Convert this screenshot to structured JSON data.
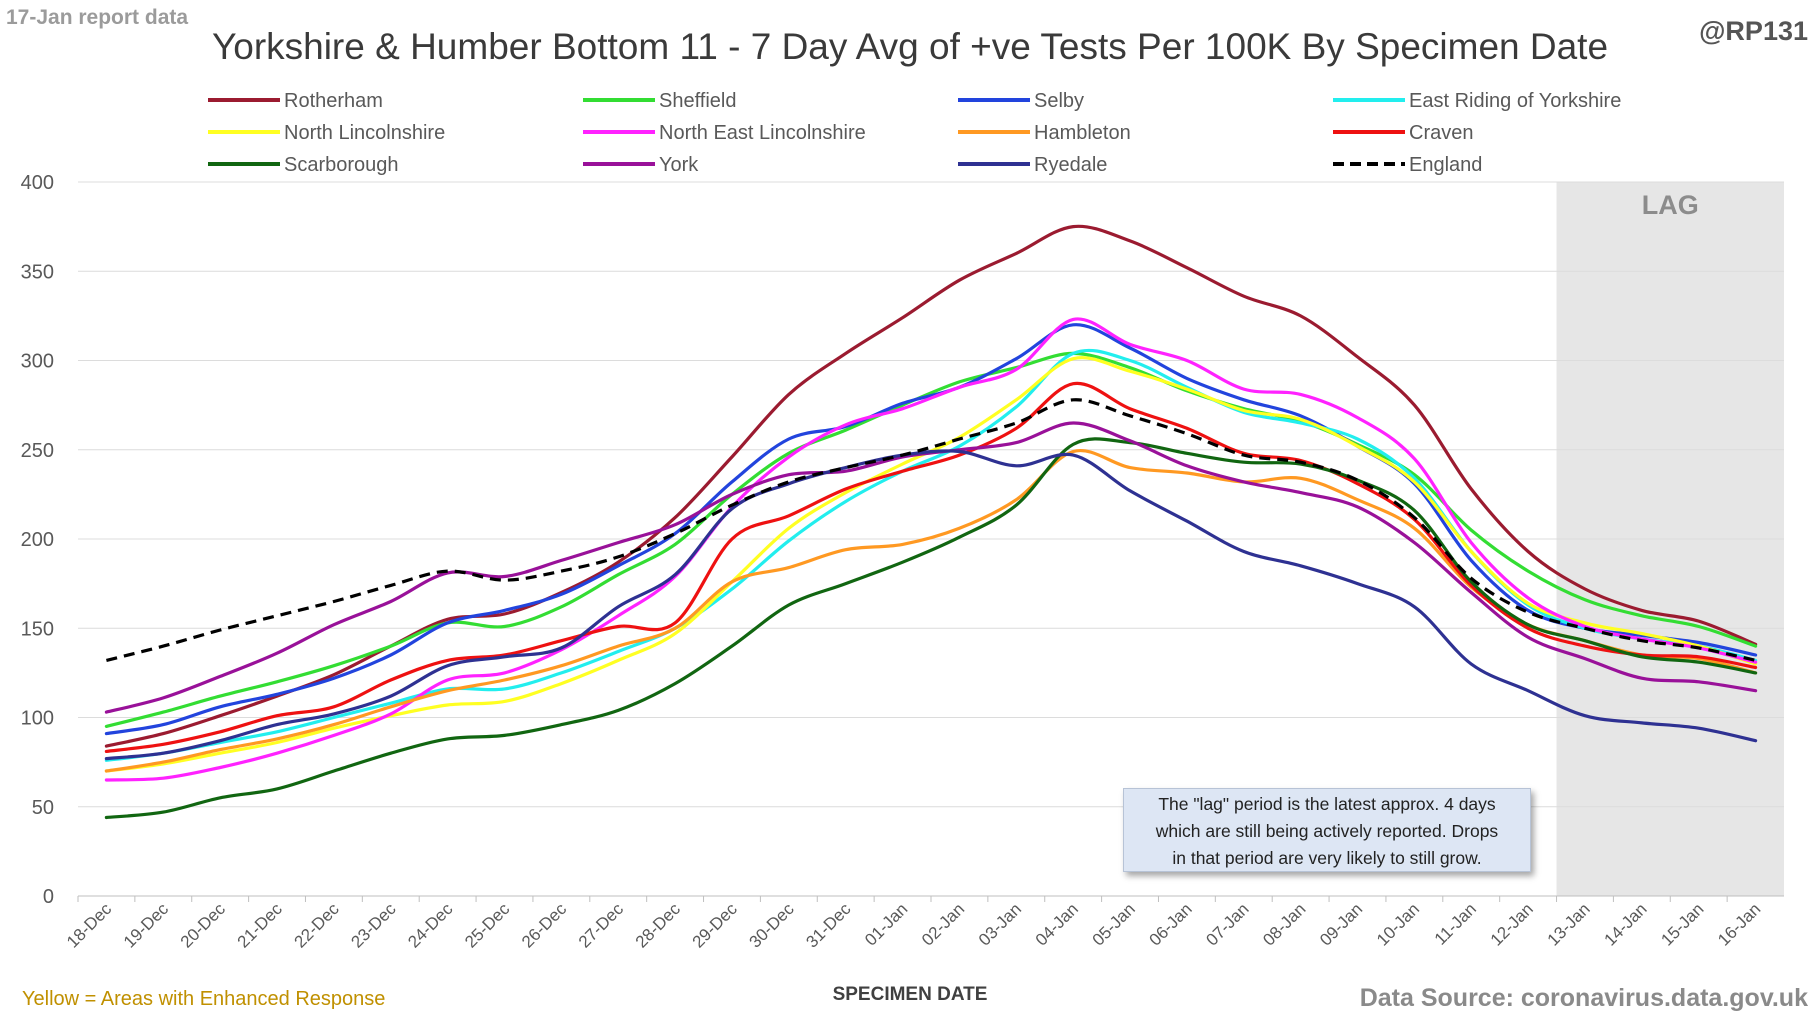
{
  "header": {
    "report_label": "17-Jan report data",
    "handle": "@RP131",
    "title": "Yorkshire & Humber Bottom 11 - 7 Day Avg of +ve Tests Per 100K By Specimen Date"
  },
  "footer": {
    "left_note": "Yellow = Areas with Enhanced Response",
    "source": "Data Source: coronavirus.data.gov.uk"
  },
  "annotation": {
    "lines": [
      "The \"lag\" period is the latest approx. 4 days",
      "which are still being actively reported.  Drops",
      "in that period are very likely to still grow."
    ]
  },
  "chart_data": {
    "type": "line",
    "title": "Yorkshire & Humber Bottom 11 - 7 Day Avg of +ve Tests Per 100K By Specimen Date",
    "xlabel": "SPECIMEN DATE",
    "ylabel": "",
    "ylim": [
      0,
      400
    ],
    "yticks": [
      0,
      50,
      100,
      150,
      200,
      250,
      300,
      350,
      400
    ],
    "grid": true,
    "legend_position": "top",
    "lag_region": {
      "label": "LAG",
      "from": "13-Jan",
      "to": "16-Jan",
      "color": "#e6e6e6"
    },
    "categories": [
      "18-Dec",
      "19-Dec",
      "20-Dec",
      "21-Dec",
      "22-Dec",
      "23-Dec",
      "24-Dec",
      "25-Dec",
      "26-Dec",
      "27-Dec",
      "28-Dec",
      "29-Dec",
      "30-Dec",
      "31-Dec",
      "01-Jan",
      "02-Jan",
      "03-Jan",
      "04-Jan",
      "05-Jan",
      "06-Jan",
      "07-Jan",
      "08-Jan",
      "09-Jan",
      "10-Jan",
      "11-Jan",
      "12-Jan",
      "13-Jan",
      "14-Jan",
      "15-Jan",
      "16-Jan"
    ],
    "series": [
      {
        "name": "Rotherham",
        "color": "#9b1b30",
        "dashed": false,
        "values": [
          84,
          91,
          101,
          112,
          124,
          140,
          155,
          158,
          170,
          187,
          212,
          246,
          281,
          304,
          324,
          345,
          360,
          375,
          367,
          352,
          336,
          325,
          302,
          275,
          228,
          193,
          172,
          160,
          154,
          141
        ]
      },
      {
        "name": "Sheffield",
        "color": "#33dd33",
        "dashed": false,
        "values": [
          95,
          103,
          112,
          120,
          129,
          140,
          153,
          151,
          162,
          180,
          197,
          225,
          248,
          261,
          275,
          288,
          296,
          304,
          296,
          283,
          273,
          266,
          253,
          236,
          205,
          182,
          166,
          157,
          151,
          140
        ]
      },
      {
        "name": "Selby",
        "color": "#2244dd",
        "dashed": false,
        "values": [
          91,
          96,
          106,
          113,
          122,
          135,
          153,
          160,
          169,
          185,
          203,
          232,
          256,
          263,
          276,
          285,
          301,
          320,
          307,
          290,
          278,
          269,
          252,
          231,
          188,
          160,
          150,
          146,
          142,
          135
        ]
      },
      {
        "name": "East Riding of Yorkshire",
        "color": "#22eeee",
        "dashed": false,
        "values": [
          76,
          80,
          86,
          92,
          100,
          108,
          116,
          116,
          125,
          137,
          150,
          172,
          199,
          221,
          238,
          252,
          274,
          304,
          300,
          285,
          271,
          265,
          256,
          234,
          193,
          163,
          150,
          144,
          140,
          132
        ]
      },
      {
        "name": "North Lincolnshire",
        "color": "#ffff22",
        "dashed": false,
        "values": [
          70,
          74,
          80,
          86,
          94,
          101,
          107,
          109,
          119,
          132,
          147,
          176,
          206,
          226,
          242,
          257,
          278,
          301,
          294,
          284,
          272,
          267,
          252,
          232,
          193,
          164,
          153,
          147,
          140,
          130
        ]
      },
      {
        "name": "North East Lincolnshire",
        "color": "#ff22ff",
        "dashed": false,
        "values": [
          65,
          66,
          72,
          80,
          90,
          102,
          121,
          125,
          138,
          157,
          179,
          218,
          246,
          264,
          273,
          285,
          295,
          323,
          309,
          300,
          284,
          281,
          268,
          245,
          198,
          167,
          151,
          144,
          139,
          131
        ]
      },
      {
        "name": "Hambleton",
        "color": "#ff9922",
        "dashed": false,
        "values": [
          70,
          75,
          82,
          88,
          96,
          106,
          115,
          121,
          129,
          140,
          150,
          176,
          184,
          194,
          197,
          206,
          222,
          249,
          240,
          237,
          232,
          234,
          222,
          206,
          173,
          152,
          143,
          135,
          133,
          125
        ]
      },
      {
        "name": "Craven",
        "color": "#ee1111",
        "dashed": false,
        "values": [
          81,
          85,
          92,
          101,
          106,
          121,
          132,
          135,
          143,
          151,
          153,
          200,
          213,
          228,
          238,
          247,
          262,
          287,
          273,
          262,
          248,
          244,
          231,
          211,
          174,
          150,
          140,
          135,
          134,
          128
        ]
      },
      {
        "name": "Scarborough",
        "color": "#116611",
        "dashed": false,
        "values": [
          44,
          47,
          55,
          60,
          70,
          80,
          88,
          90,
          96,
          104,
          119,
          140,
          163,
          175,
          187,
          201,
          219,
          253,
          254,
          248,
          243,
          242,
          233,
          216,
          176,
          152,
          143,
          134,
          131,
          125
        ]
      },
      {
        "name": "York",
        "color": "#991199",
        "dashed": false,
        "values": [
          103,
          111,
          123,
          136,
          152,
          165,
          181,
          179,
          188,
          198,
          208,
          225,
          236,
          238,
          246,
          250,
          254,
          265,
          255,
          241,
          232,
          226,
          218,
          198,
          170,
          145,
          133,
          122,
          120,
          115
        ]
      },
      {
        "name": "Ryedale",
        "color": "#2e3192",
        "dashed": false,
        "values": [
          77,
          80,
          87,
          96,
          102,
          112,
          129,
          134,
          139,
          162,
          180,
          217,
          231,
          240,
          247,
          249,
          241,
          247,
          227,
          210,
          193,
          185,
          175,
          162,
          130,
          115,
          101,
          97,
          94,
          87
        ]
      },
      {
        "name": "England",
        "color": "#000000",
        "dashed": true,
        "values": [
          132,
          140,
          149,
          157,
          165,
          174,
          182,
          177,
          182,
          190,
          203,
          219,
          232,
          240,
          247,
          256,
          265,
          278,
          269,
          259,
          247,
          243,
          233,
          212,
          178,
          159,
          150,
          143,
          139,
          132
        ]
      }
    ]
  }
}
